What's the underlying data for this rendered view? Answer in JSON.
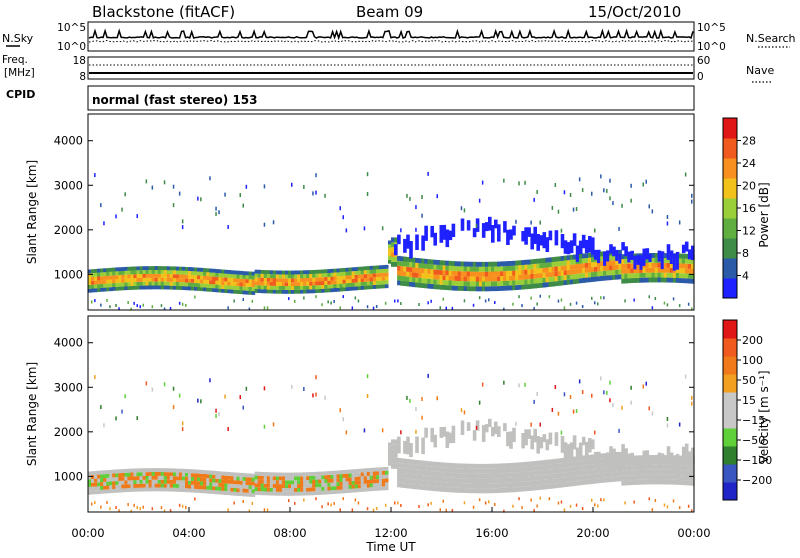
{
  "header": {
    "station": "Blackstone (fitACF)",
    "beam": "Beam 09",
    "date": "15/Oct/2010"
  },
  "colors": {
    "power_scale": [
      "#1f22ff",
      "#2a5aa8",
      "#3f8b48",
      "#5fae3f",
      "#9bcf3a",
      "#f2c21a",
      "#f7901e",
      "#f05a1e",
      "#e01515"
    ],
    "velocity_scale": [
      "#2025c8",
      "#3a56c0",
      "#2f7f2f",
      "#5fcf3a",
      "#c8c8c8",
      "#c8c8c8",
      "#f2a020",
      "#f07a1a",
      "#f05a1e",
      "#e01515"
    ],
    "ground_scatter": "#c0c0be"
  },
  "chart_data": [
    {
      "type": "line",
      "name": "noise-panel",
      "left_labels": [
        "N.Sky"
      ],
      "left_ticks": [
        "10^5",
        "10^0"
      ],
      "right_ticks": [
        "10^5",
        "10^0"
      ],
      "right_labels": [
        "N.Search"
      ],
      "x": [
        "00:00",
        "04:00",
        "08:00",
        "12:00",
        "16:00",
        "20:00",
        "00:00"
      ]
    },
    {
      "type": "line",
      "name": "freq-panel",
      "left_labels": [
        "Freq.",
        "[MHz]"
      ],
      "left_ticks": [
        "18",
        "8"
      ],
      "right_ticks": [
        "60",
        "0"
      ],
      "right_labels": [
        "Nave"
      ]
    },
    {
      "type": "table",
      "name": "cpid-panel",
      "label": "CPID",
      "text": "normal (fast stereo) 153"
    },
    {
      "type": "heatmap",
      "name": "power-panel",
      "ylabel": "Slant Range [km]",
      "yticks": [
        1000,
        2000,
        3000,
        4000
      ],
      "ylim": [
        200,
        4600
      ],
      "xlim": [
        0,
        24
      ],
      "colorbar_label": "Power [dB]",
      "colorbar_ticks": [
        "28",
        "24",
        "20",
        "16",
        "12",
        "8",
        "4"
      ],
      "clim": [
        0,
        30
      ]
    },
    {
      "type": "heatmap",
      "name": "velocity-panel",
      "ylabel": "Slant Range [km]",
      "yticks": [
        1000,
        2000,
        3000,
        4000
      ],
      "ylim": [
        200,
        4600
      ],
      "xlim": [
        0,
        24
      ],
      "xticks": [
        "00:00",
        "04:00",
        "08:00",
        "12:00",
        "16:00",
        "20:00",
        "00:00"
      ],
      "xlabel": "Time UT",
      "colorbar_label": "Velocity [m s⁻¹]",
      "colorbar_ticks": [
        "200",
        "100",
        "50",
        "15",
        "−15",
        "−50",
        "−100",
        "−200"
      ],
      "clim": [
        -250,
        250
      ]
    }
  ]
}
